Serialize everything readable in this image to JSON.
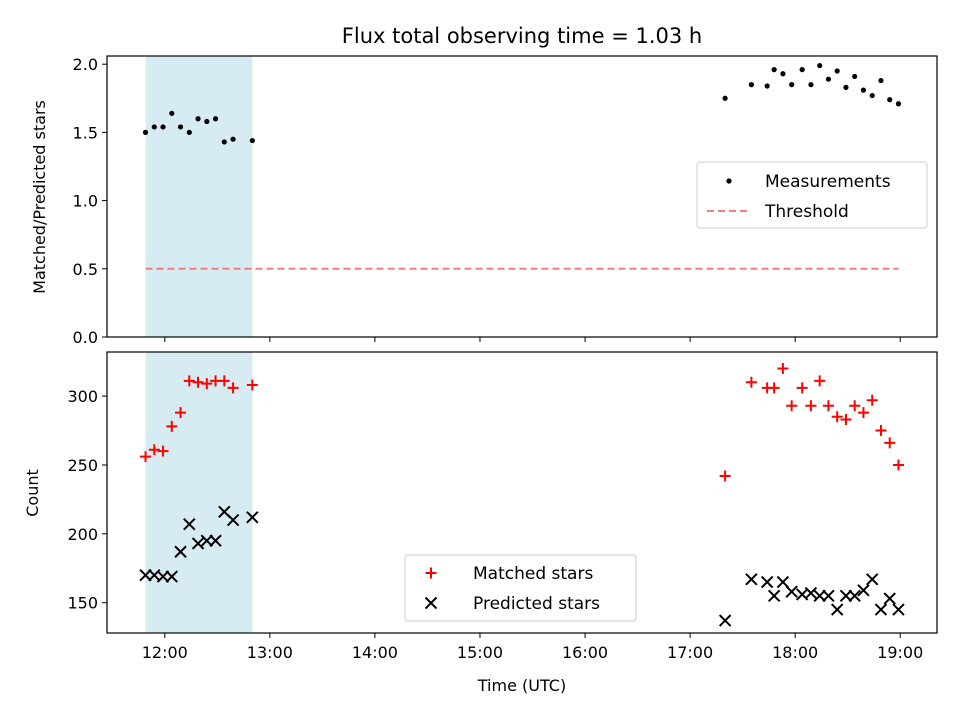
{
  "chart_data": {
    "title": "Flux total observing time = 1.03 h",
    "x_label": "Time (UTC)",
    "x_ticks": [
      "12:00",
      "13:00",
      "14:00",
      "15:00",
      "16:00",
      "17:00",
      "18:00",
      "19:00"
    ],
    "x_range": [
      "11:27",
      "19:21"
    ],
    "highlight_span": [
      "11:49",
      "12:50"
    ],
    "colors": {
      "span": "#add8e6",
      "threshold": "#f08080",
      "matched": "#ff0000",
      "predicted": "#000000",
      "measurement": "#000000"
    },
    "panels": [
      {
        "type": "scatter",
        "ylabel": "Matched/Predicted stars",
        "ylim": [
          0,
          2.06
        ],
        "yticks": [
          "0.0",
          "0.5",
          "1.0",
          "1.5",
          "2.0"
        ],
        "legend": {
          "position": "center-right",
          "entries": [
            "Measurements",
            "Threshold"
          ]
        },
        "series": [
          {
            "name": "Measurements",
            "marker": "dot",
            "x": [
              "11:49",
              "11:54",
              "11:59",
              "12:04",
              "12:09",
              "12:14",
              "12:19",
              "12:24",
              "12:29",
              "12:34",
              "12:39",
              "12:50",
              "17:20",
              "17:35",
              "17:44",
              "17:48",
              "17:53",
              "17:58",
              "18:04",
              "18:09",
              "18:14",
              "18:19",
              "18:24",
              "18:29",
              "18:34",
              "18:39",
              "18:44",
              "18:49",
              "18:54",
              "18:59"
            ],
            "y": [
              1.5,
              1.54,
              1.54,
              1.64,
              1.54,
              1.5,
              1.6,
              1.58,
              1.6,
              1.43,
              1.45,
              1.44,
              1.75,
              1.85,
              1.84,
              1.96,
              1.93,
              1.85,
              1.96,
              1.85,
              1.99,
              1.89,
              1.95,
              1.83,
              1.91,
              1.81,
              1.77,
              1.88,
              1.74,
              1.71
            ]
          },
          {
            "name": "Threshold",
            "marker": "dashed-line",
            "x": [
              "11:49",
              "18:59"
            ],
            "y": [
              0.5,
              0.5
            ]
          }
        ]
      },
      {
        "type": "scatter",
        "ylabel": "Count",
        "ylim": [
          128,
          332
        ],
        "yticks": [
          "150",
          "200",
          "250",
          "300"
        ],
        "legend": {
          "position": "lower-center",
          "entries": [
            "Matched stars",
            "Predicted stars"
          ]
        },
        "series": [
          {
            "name": "Matched stars",
            "marker": "plus",
            "x": [
              "11:49",
              "11:54",
              "11:59",
              "12:04",
              "12:09",
              "12:14",
              "12:19",
              "12:24",
              "12:29",
              "12:34",
              "12:39",
              "12:50",
              "17:20",
              "17:35",
              "17:44",
              "17:48",
              "17:53",
              "17:58",
              "18:04",
              "18:09",
              "18:14",
              "18:19",
              "18:24",
              "18:29",
              "18:34",
              "18:39",
              "18:44",
              "18:49",
              "18:54",
              "18:59"
            ],
            "y": [
              256,
              261,
              260,
              278,
              288,
              311,
              310,
              309,
              311,
              311,
              306,
              308,
              242,
              310,
              306,
              306,
              320,
              293,
              306,
              293,
              311,
              293,
              285,
              283,
              293,
              288,
              297,
              275,
              266,
              250
            ]
          },
          {
            "name": "Predicted stars",
            "marker": "x",
            "x": [
              "11:49",
              "11:54",
              "11:59",
              "12:04",
              "12:09",
              "12:14",
              "12:19",
              "12:24",
              "12:29",
              "12:34",
              "12:39",
              "12:50",
              "17:20",
              "17:35",
              "17:44",
              "17:48",
              "17:53",
              "17:58",
              "18:04",
              "18:09",
              "18:14",
              "18:19",
              "18:24",
              "18:29",
              "18:34",
              "18:39",
              "18:44",
              "18:49",
              "18:54",
              "18:59"
            ],
            "y": [
              170,
              170,
              169,
              169,
              187,
              207,
              193,
              195,
              195,
              216,
              210,
              212,
              137,
              167,
              165,
              155,
              165,
              158,
              156,
              157,
              155,
              155,
              145,
              155,
              155,
              159,
              167,
              145,
              153,
              145
            ]
          }
        ]
      }
    ]
  }
}
